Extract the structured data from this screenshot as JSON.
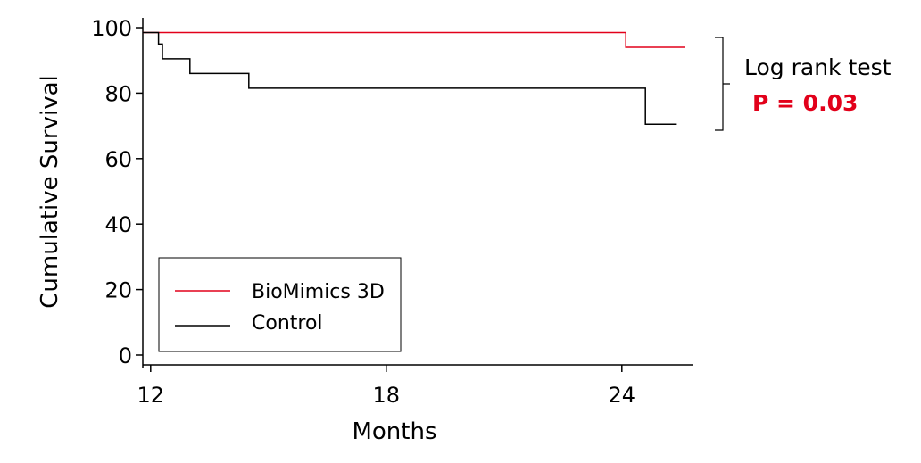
{
  "chart_data": {
    "type": "line",
    "step": true,
    "title": "",
    "xlabel": "Months",
    "ylabel": "Cumulative Survival",
    "xlim": [
      11.8,
      25.8
    ],
    "ylim": [
      -3,
      103
    ],
    "xticks": [
      12,
      18,
      24
    ],
    "xtick_labels": [
      "12",
      "18",
      "24"
    ],
    "yticks": [
      0,
      20,
      40,
      60,
      80,
      100
    ],
    "ytick_labels": [
      "0",
      "20",
      "40",
      "60",
      "80",
      "100"
    ],
    "series": [
      {
        "name": "BioMimics 3D",
        "color": "#e2001a",
        "x": [
          11.8,
          24.1,
          24.1,
          25.6
        ],
        "y": [
          98.5,
          98.5,
          94.0,
          94.0
        ]
      },
      {
        "name": "Control",
        "color": "#000000",
        "x": [
          11.8,
          12.2,
          12.2,
          12.3,
          12.3,
          13.0,
          13.0,
          14.5,
          14.5,
          24.6,
          24.6,
          25.4
        ],
        "y": [
          98.5,
          98.5,
          95.0,
          95.0,
          90.5,
          90.5,
          86.0,
          86.0,
          81.5,
          81.5,
          70.5,
          70.5
        ]
      }
    ],
    "legend": {
      "position": "bottom-left",
      "entries": [
        "BioMimics 3D",
        "Control"
      ]
    },
    "annotation": {
      "label": "Log rank test",
      "p_value": "P = 0.03",
      "p_color": "#e2001a"
    }
  }
}
